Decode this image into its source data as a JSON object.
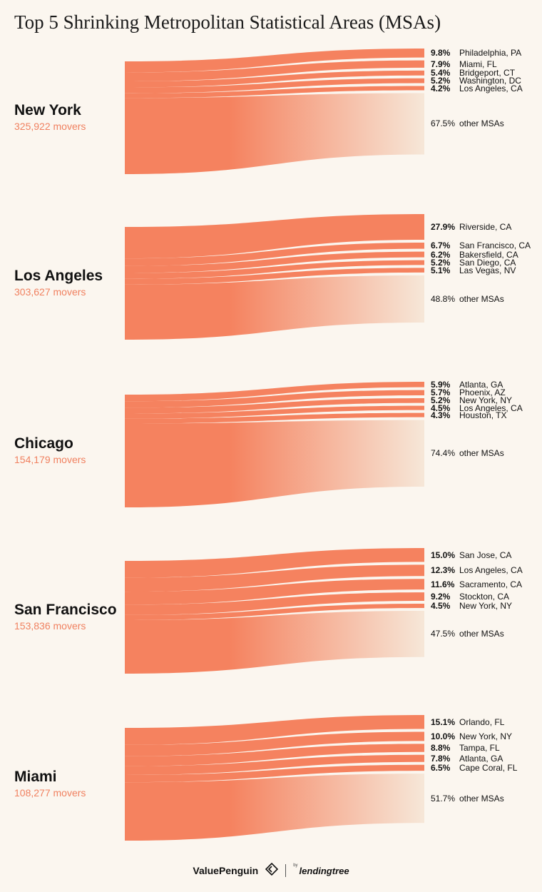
{
  "title": "Top 5 Shrinking Metropolitan Statistical Areas (MSAs)",
  "colors": {
    "flow": "#f5825f",
    "other_end": "#f6e7d8",
    "movers": "#f08160",
    "background": "#fbf6ef"
  },
  "chart_data": [
    {
      "type": "sankey",
      "origin": "New York",
      "movers_label": "325,922 movers",
      "movers": 325922,
      "destinations": [
        {
          "pct_label": "9.8%",
          "name": "Philadelphia, PA",
          "value": 9.8
        },
        {
          "pct_label": "7.9%",
          "name": "Miami, FL",
          "value": 7.9
        },
        {
          "pct_label": "5.4%",
          "name": "Bridgeport, CT",
          "value": 5.4
        },
        {
          "pct_label": "5.2%",
          "name": "Washington, DC",
          "value": 5.2
        },
        {
          "pct_label": "4.2%",
          "name": "Los Angeles, CA",
          "value": 4.2
        },
        {
          "pct_label": "67.5%",
          "name": "other MSAs",
          "value": 67.5,
          "other": true
        }
      ]
    },
    {
      "type": "sankey",
      "origin": "Los Angeles",
      "movers_label": "303,627 movers",
      "movers": 303627,
      "destinations": [
        {
          "pct_label": "27.9%",
          "name": "Riverside, CA",
          "value": 27.9
        },
        {
          "pct_label": "6.7%",
          "name": "San Francisco, CA",
          "value": 6.7
        },
        {
          "pct_label": "6.2%",
          "name": "Bakersfield, CA",
          "value": 6.2
        },
        {
          "pct_label": "5.2%",
          "name": "San Diego, CA",
          "value": 5.2
        },
        {
          "pct_label": "5.1%",
          "name": "Las Vegas, NV",
          "value": 5.1
        },
        {
          "pct_label": "48.8%",
          "name": "other MSAs",
          "value": 48.8,
          "other": true
        }
      ]
    },
    {
      "type": "sankey",
      "origin": "Chicago",
      "movers_label": "154,179 movers",
      "movers": 154179,
      "destinations": [
        {
          "pct_label": "5.9%",
          "name": "Atlanta, GA",
          "value": 5.9
        },
        {
          "pct_label": "5.7%",
          "name": "Phoenix, AZ",
          "value": 5.7
        },
        {
          "pct_label": "5.2%",
          "name": "New York, NY",
          "value": 5.2
        },
        {
          "pct_label": "4.5%",
          "name": "Los Angeles, CA",
          "value": 4.5
        },
        {
          "pct_label": "4.3%",
          "name": "Houston, TX",
          "value": 4.3
        },
        {
          "pct_label": "74.4%",
          "name": "other MSAs",
          "value": 74.4,
          "other": true
        }
      ]
    },
    {
      "type": "sankey",
      "origin": "San Francisco",
      "movers_label": "153,836 movers",
      "movers": 153836,
      "destinations": [
        {
          "pct_label": "15.0%",
          "name": "San Jose, CA",
          "value": 15.0
        },
        {
          "pct_label": "12.3%",
          "name": "Los Angeles, CA",
          "value": 12.3
        },
        {
          "pct_label": "11.6%",
          "name": "Sacramento, CA",
          "value": 11.6
        },
        {
          "pct_label": "9.2%",
          "name": "Stockton, CA",
          "value": 9.2
        },
        {
          "pct_label": "4.5%",
          "name": "New York, NY",
          "value": 4.5
        },
        {
          "pct_label": "47.5%",
          "name": "other MSAs",
          "value": 47.5,
          "other": true
        }
      ]
    },
    {
      "type": "sankey",
      "origin": "Miami",
      "movers_label": "108,277 movers",
      "movers": 108277,
      "destinations": [
        {
          "pct_label": "15.1%",
          "name": "Orlando, FL",
          "value": 15.1
        },
        {
          "pct_label": "10.0%",
          "name": "New York, NY",
          "value": 10.0
        },
        {
          "pct_label": "8.8%",
          "name": "Tampa, FL",
          "value": 8.8
        },
        {
          "pct_label": "7.8%",
          "name": "Atlanta, GA",
          "value": 7.8
        },
        {
          "pct_label": "6.5%",
          "name": "Cape Coral, FL",
          "value": 6.5
        },
        {
          "pct_label": "51.7%",
          "name": "other MSAs",
          "value": 51.7,
          "other": true
        }
      ]
    }
  ],
  "footer": {
    "brand": "ValuePenguin",
    "by": "by",
    "partner": "lendingtree"
  }
}
